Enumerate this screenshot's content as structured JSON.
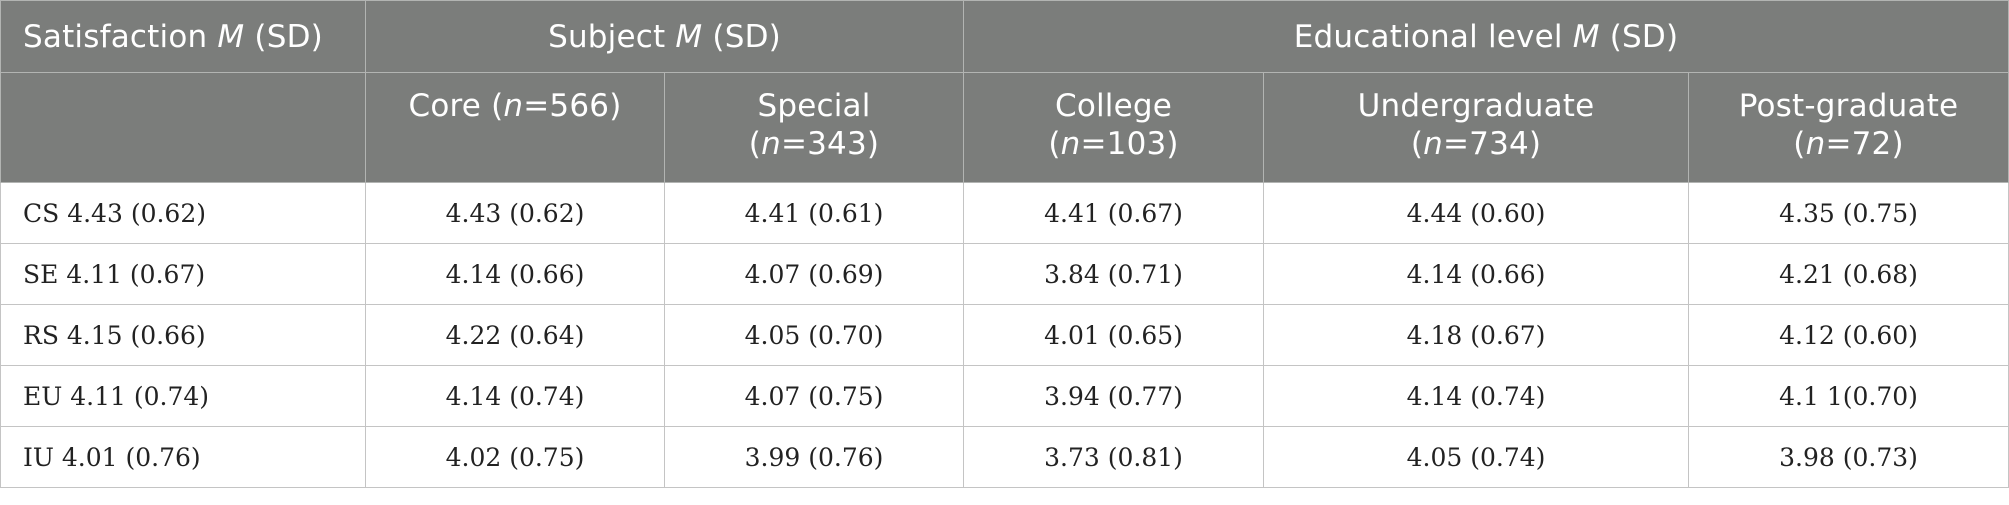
{
  "header": {
    "satisfaction": {
      "pre": "Satisfaction ",
      "em": "M",
      "post": " (SD)"
    },
    "subject": {
      "pre": "Subject ",
      "em": "M",
      "post": " (SD)"
    },
    "education": {
      "pre": "Educational level ",
      "em": "M",
      "post": " (SD)"
    },
    "columns": [
      {
        "name": "Core (",
        "n": "n",
        "rest": "=566)",
        "wrap": false
      },
      {
        "name": "Special",
        "n": "n",
        "rest": "=343)",
        "wrap": true
      },
      {
        "name": "College",
        "n": "n",
        "rest": "=103)",
        "wrap": true
      },
      {
        "name": "Undergraduate",
        "n": "n",
        "rest": "=734)",
        "wrap": true
      },
      {
        "name": "Post-graduate",
        "n": "n",
        "rest": "=72)",
        "wrap": true
      }
    ]
  },
  "rows": [
    {
      "label": "CS 4.43 (0.62)",
      "cells": [
        "4.43 (0.62)",
        "4.41 (0.61)",
        "4.41 (0.67)",
        "4.44 (0.60)",
        "4.35 (0.75)"
      ]
    },
    {
      "label": "SE 4.11 (0.67)",
      "cells": [
        "4.14 (0.66)",
        "4.07 (0.69)",
        "3.84 (0.71)",
        "4.14 (0.66)",
        "4.21 (0.68)"
      ]
    },
    {
      "label": "RS 4.15 (0.66)",
      "cells": [
        "4.22 (0.64)",
        "4.05 (0.70)",
        "4.01 (0.65)",
        "4.18 (0.67)",
        "4.12 (0.60)"
      ]
    },
    {
      "label": "EU 4.11 (0.74)",
      "cells": [
        "4.14 (0.74)",
        "4.07 (0.75)",
        "3.94 (0.77)",
        "4.14 (0.74)",
        "4.1 1(0.70)"
      ]
    },
    {
      "label": "IU 4.01 (0.76)",
      "cells": [
        "4.02 (0.75)",
        "3.99 (0.76)",
        "3.73 (0.81)",
        "4.05 (0.74)",
        "3.98 (0.73)"
      ]
    }
  ]
}
